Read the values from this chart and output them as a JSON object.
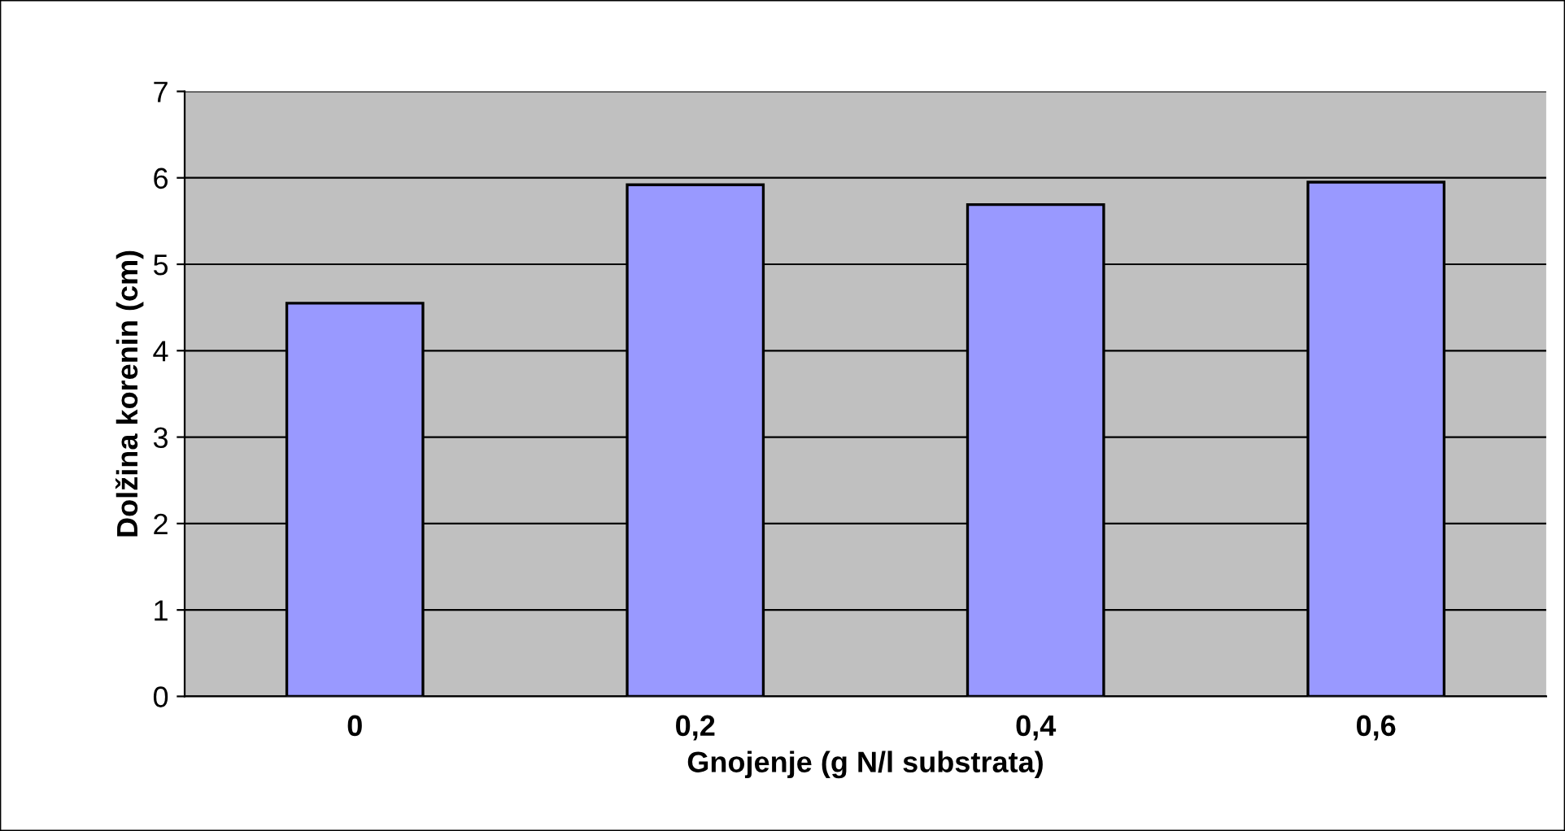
{
  "chart_data": {
    "type": "bar",
    "xlabel": "Gnojenje (g N/l substrata)",
    "ylabel": "Dolžina korenin (cm)",
    "categories": [
      "0",
      "0,2",
      "0,4",
      "0,6"
    ],
    "values": [
      4.55,
      5.92,
      5.69,
      5.95
    ],
    "color": "#9999ff",
    "ylim": [
      0,
      7
    ],
    "yticks": [
      0,
      1,
      2,
      3,
      4,
      5,
      6,
      7
    ],
    "grid": "y",
    "legend": false
  }
}
